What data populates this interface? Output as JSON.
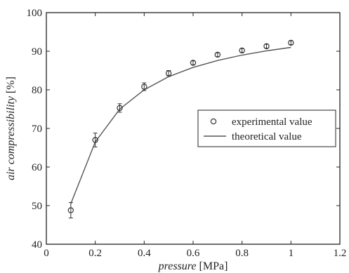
{
  "chart_data": {
    "type": "scatter",
    "xlabel": {
      "italic": "pressure",
      "unit": "[MPa]"
    },
    "ylabel": {
      "italic": "air compressibility",
      "unit": "[%]"
    },
    "xlim": [
      0,
      1.2
    ],
    "ylim": [
      40,
      100
    ],
    "xticks": [
      0,
      0.2,
      0.4,
      0.6,
      0.8,
      1,
      1.2
    ],
    "yticks": [
      40,
      50,
      60,
      70,
      80,
      90,
      100
    ],
    "xtick_labels": [
      "0",
      "0.2",
      "0.4",
      "0.6",
      "0.8",
      "1",
      "1.2"
    ],
    "ytick_labels": [
      "40",
      "50",
      "60",
      "70",
      "80",
      "90",
      "100"
    ],
    "grid": false,
    "legend": {
      "placement": "right-middle",
      "entries": [
        {
          "label": "experimental value",
          "marker": "circle-icon"
        },
        {
          "label": "theoretical value",
          "marker": "line-icon"
        }
      ]
    },
    "series": [
      {
        "name": "experimental value",
        "kind": "scatter",
        "x": [
          0.1,
          0.2,
          0.3,
          0.4,
          0.5,
          0.6,
          0.7,
          0.8,
          0.9,
          1.0
        ],
        "y": [
          48.8,
          67.0,
          75.3,
          80.8,
          84.3,
          87.0,
          89.1,
          90.2,
          91.3,
          92.2
        ],
        "error": [
          2.0,
          1.8,
          1.1,
          1.0,
          0.7,
          0.5,
          0.5,
          0.5,
          0.5,
          0.5
        ]
      },
      {
        "name": "theoretical value",
        "kind": "line",
        "x": [
          0.1,
          0.2,
          0.3,
          0.4,
          0.5,
          0.6,
          0.7,
          0.8,
          0.9,
          1.0
        ],
        "y": [
          50.5,
          66.5,
          75.0,
          80.0,
          83.4,
          85.8,
          87.6,
          89.0,
          90.1,
          91.0
        ]
      }
    ],
    "colors": {
      "axis": "#222222",
      "marker": "#333333",
      "line": "#555555"
    }
  }
}
